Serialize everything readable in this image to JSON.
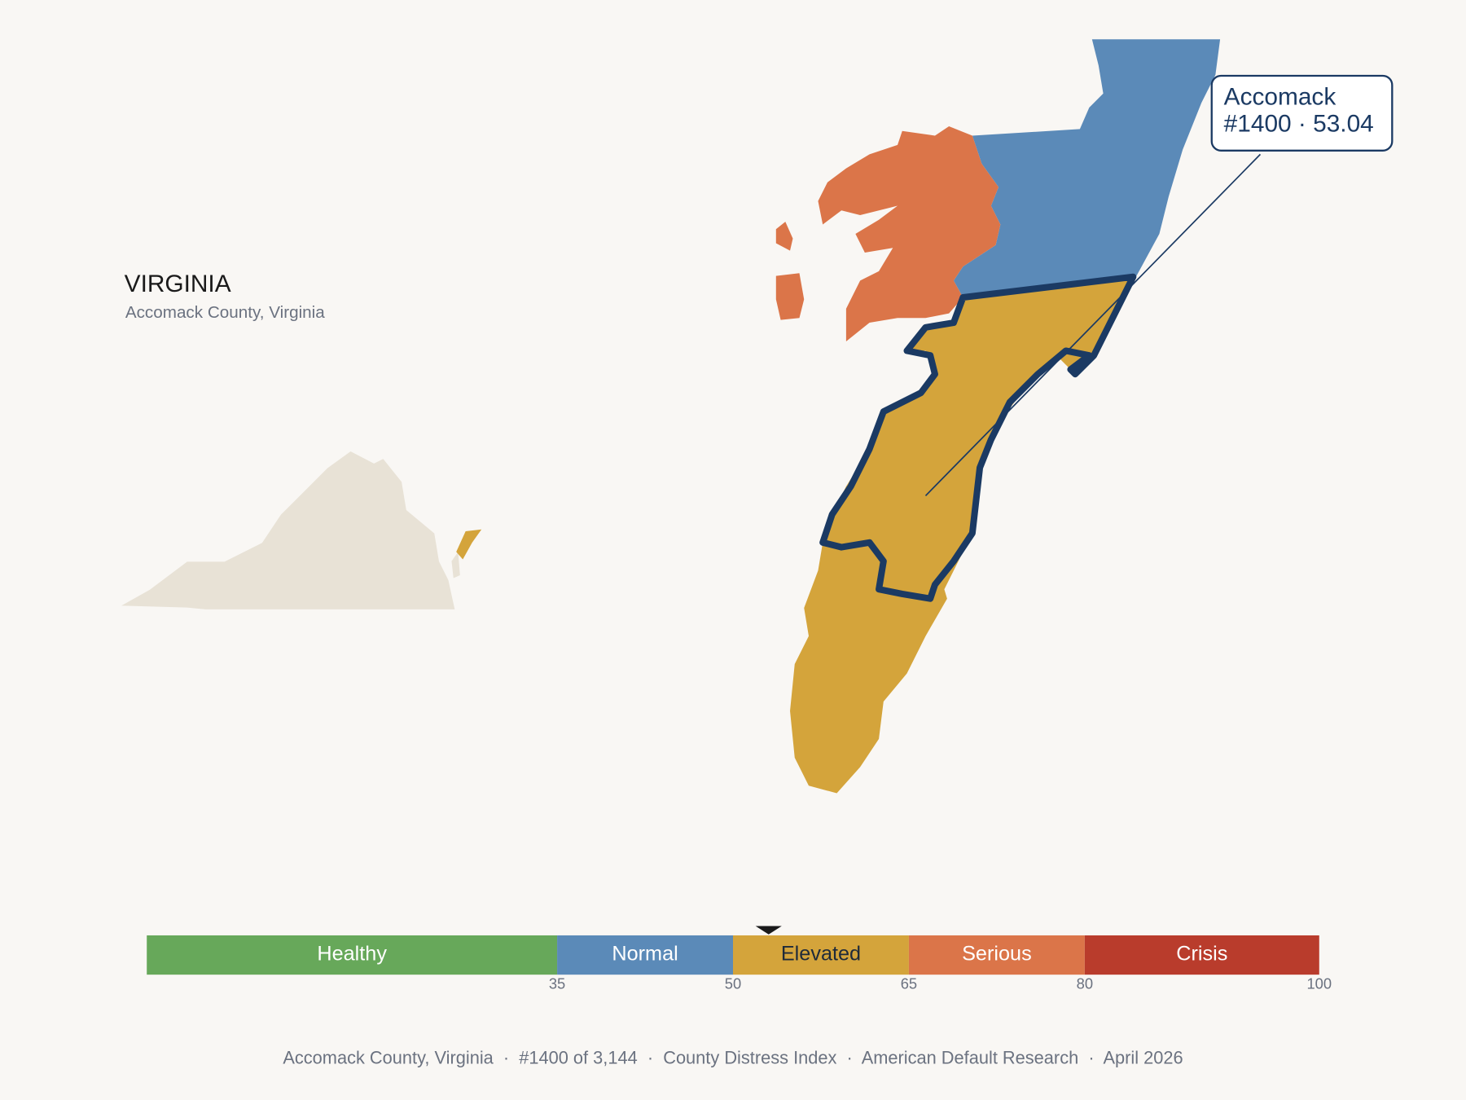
{
  "header": {
    "title": "VIRGINIA",
    "subtitle": "Accomack County, Virginia"
  },
  "callout": {
    "name": "Accomack",
    "detail": "#1400 · 53.04"
  },
  "scale": {
    "lim": [
      0,
      100
    ],
    "ticks": [
      35,
      50,
      65,
      80,
      100
    ],
    "marker": 53.04,
    "bands": [
      {
        "label": "Healthy",
        "color": "#67a85a",
        "text_color": "#ffffff"
      },
      {
        "label": "Normal",
        "color": "#5b8ab8",
        "text_color": "#ffffff"
      },
      {
        "label": "Elevated",
        "color": "#d4a43b",
        "text_color": "#1e2a3a"
      },
      {
        "label": "Serious",
        "color": "#db7549",
        "text_color": "#ffffff"
      },
      {
        "label": "Crisis",
        "color": "#b93c2c",
        "text_color": "#ffffff"
      }
    ]
  },
  "footer": "Accomack County, Virginia  ·  #1400 of 3,144  ·  County Distress Index  ·  American Default Research  ·  April 2026"
}
